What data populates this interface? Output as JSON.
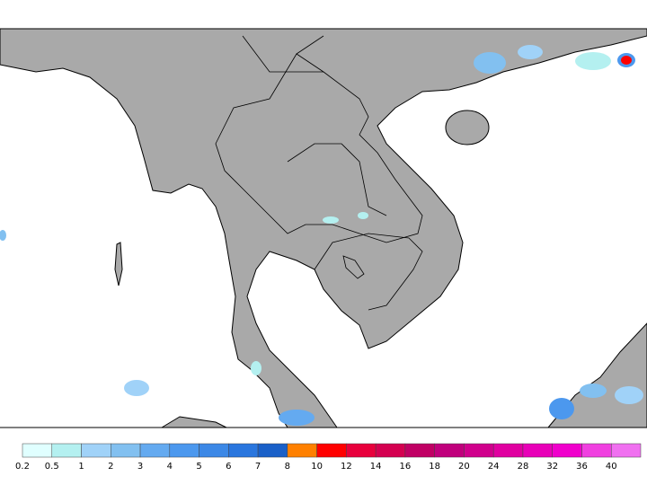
{
  "colorbar": {
    "ticks": [
      0.2,
      0.5,
      1,
      2,
      3,
      4,
      5,
      6,
      7,
      8,
      10,
      12,
      14,
      16,
      18,
      20,
      24,
      28,
      32,
      36,
      40
    ],
    "colors": [
      "#e0ffff",
      "#b4f0f0",
      "#a0d2f8",
      "#82c0f0",
      "#64aaf0",
      "#4c98ee",
      "#3c88e6",
      "#2a76de",
      "#1a60c8",
      "#ff8000",
      "#ff0000",
      "#e8003c",
      "#d40050",
      "#c00064",
      "#c0007c",
      "#d0008c",
      "#e000a0",
      "#e800b8",
      "#f000cc",
      "#f040e0",
      "#f070f0"
    ]
  }
}
